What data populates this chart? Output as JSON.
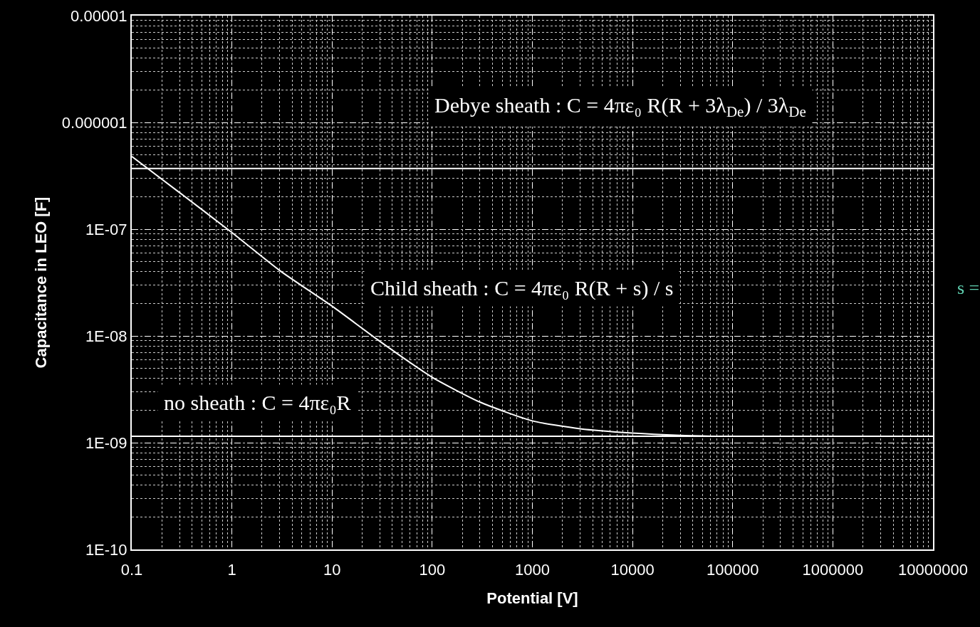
{
  "chart_data": {
    "type": "line",
    "xlabel": "Potential [V]",
    "ylabel": "Capacitance in LEO [F]",
    "log": "xy",
    "grid": true,
    "line_style": "solid",
    "marker": "none",
    "x": [
      0.1,
      0.3,
      1,
      3,
      10,
      30,
      100,
      300,
      1000,
      3000,
      10000,
      30000,
      63000
    ],
    "series": [
      {
        "color": "#ffffff",
        "values": [
          4.8e-07,
          2.2e-07,
          9.3e-08,
          4.1e-08,
          1.9e-08,
          8.9e-09,
          4.1e-09,
          2.4e-09,
          1.6e-09,
          1.35e-09,
          1.23e-09,
          1.17e-09,
          1.15e-09
        ]
      }
    ],
    "xlim": [
      0.1,
      10000000
    ],
    "xticks": [
      0.1,
      1,
      10,
      100,
      1000,
      10000,
      100000,
      1000000,
      10000000
    ],
    "ylim": [
      1e-10,
      1e-05
    ],
    "yticks": [
      {
        "value": 1e-05,
        "label": "0.00001"
      },
      {
        "value": 1e-06,
        "label": "0.000001"
      },
      {
        "value": 1e-07,
        "label": "1E-07"
      },
      {
        "value": 1e-08,
        "label": "1E-08"
      },
      {
        "value": 1e-09,
        "label": "1E-09"
      },
      {
        "value": 1e-10,
        "label": "1E-10"
      }
    ],
    "ref_lines": [
      {
        "axis": "y",
        "value": 3.7e-07,
        "color": "#ffffff"
      },
      {
        "axis": "y",
        "value": 1.15e-09,
        "color": "#ffffff"
      }
    ],
    "annotations": [
      "Debye sheath : C = 4πε₀ R(R + 3λ$_{De}$) / 3λ$_{De}$",
      "Child sheath : C = 4πε₀ R(R + s) / s",
      "no sheath : C = 4πε₀R",
      "s ="
    ]
  }
}
